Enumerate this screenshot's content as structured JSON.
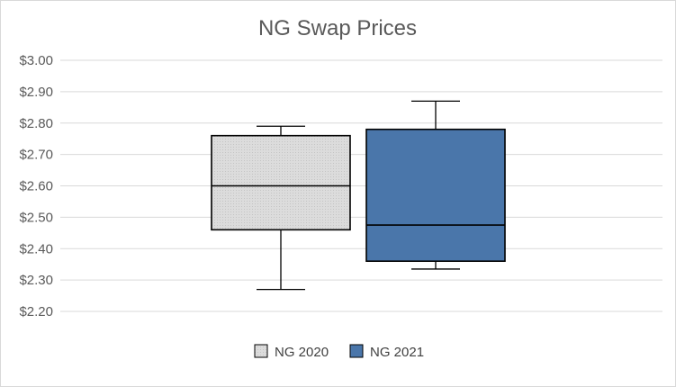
{
  "chart_data": {
    "type": "boxplot",
    "title": "NG Swap Prices",
    "ylim": [
      2.2,
      3.0
    ],
    "y_ticks": [
      3.0,
      2.9,
      2.8,
      2.7,
      2.6,
      2.5,
      2.4,
      2.3,
      2.2
    ],
    "y_tick_labels": [
      "$3.00",
      "$2.90",
      "$2.80",
      "$2.70",
      "$2.60",
      "$2.50",
      "$2.40",
      "$2.30",
      "$2.20"
    ],
    "grid": true,
    "legend_placement": "bottom",
    "series": [
      {
        "name": "NG 2020",
        "min": 2.27,
        "q1": 2.46,
        "median": 2.6,
        "q3": 2.76,
        "max": 2.79,
        "color": "#d9d9d9"
      },
      {
        "name": "NG 2021",
        "min": 2.335,
        "q1": 2.36,
        "median": 2.475,
        "q3": 2.78,
        "max": 2.87,
        "color": "#4a76aa"
      }
    ]
  }
}
